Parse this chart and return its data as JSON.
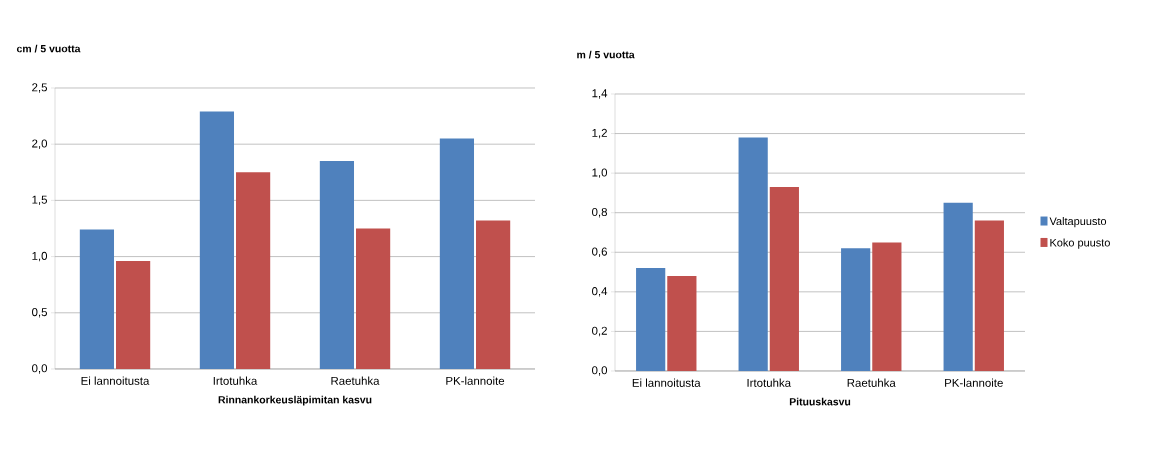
{
  "chart_data": [
    {
      "type": "bar",
      "ylabel": "cm / 5 vuotta",
      "xlabel": "Rinnankorkeusläpimitan kasvu",
      "categories": [
        "Ei lannoitusta",
        "Irtotuhka",
        "Raetuhka",
        "PK-lannoite"
      ],
      "series": [
        {
          "color": "#4f81bd",
          "values": [
            1.24,
            2.29,
            1.85,
            2.05
          ]
        },
        {
          "color": "#c0504d",
          "values": [
            0.96,
            1.75,
            1.25,
            1.32
          ]
        }
      ],
      "ylim": [
        0,
        2.5
      ],
      "yticks": [
        {
          "value": 0,
          "label": "0,0"
        },
        {
          "value": 0.5,
          "label": "0,5"
        },
        {
          "value": 1,
          "label": "1,0"
        },
        {
          "value": 1.5,
          "label": "1,5"
        },
        {
          "value": 2,
          "label": "2,0"
        },
        {
          "value": 2.5,
          "label": "2,5"
        }
      ],
      "grid": "y",
      "legend": false
    },
    {
      "type": "bar",
      "ylabel": "m / 5 vuotta",
      "xlabel": "Pituuskasvu",
      "categories": [
        "Ei lannoitusta",
        "Irtotuhka",
        "Raetuhka",
        "PK-lannoite"
      ],
      "series": [
        {
          "name": "Valtapuusto",
          "color": "#4f81bd",
          "values": [
            0.52,
            1.18,
            0.62,
            0.85
          ]
        },
        {
          "name": "Koko puusto",
          "color": "#c0504d",
          "values": [
            0.48,
            0.93,
            0.65,
            0.76
          ]
        }
      ],
      "ylim": [
        0,
        1.4
      ],
      "yticks": [
        {
          "value": 0,
          "label": "0,0"
        },
        {
          "value": 0.2,
          "label": "0,2"
        },
        {
          "value": 0.4,
          "label": "0,4"
        },
        {
          "value": 0.6,
          "label": "0,6"
        },
        {
          "value": 0.8,
          "label": "0,8"
        },
        {
          "value": 1,
          "label": "1,0"
        },
        {
          "value": 1.2,
          "label": "1,2"
        },
        {
          "value": 1.4,
          "label": "1,4"
        }
      ],
      "grid": "y",
      "legend": "right"
    }
  ]
}
